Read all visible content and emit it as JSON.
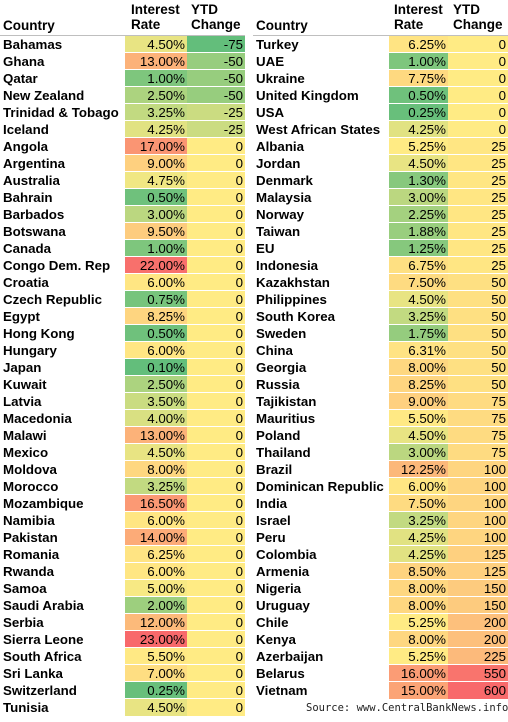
{
  "headers": {
    "country": "Country",
    "rate_line1": "Interest",
    "rate_line2": "Rate",
    "ytd_line1": "YTD",
    "ytd_line2": "Change"
  },
  "colors": {
    "green": "#63be7b",
    "yellow": "#ffeb84",
    "red": "#f8696b"
  },
  "left_rows": [
    {
      "country": "Bahamas",
      "rate": "4.50%",
      "ytd": "-75"
    },
    {
      "country": "Ghana",
      "rate": "13.00%",
      "ytd": "-50"
    },
    {
      "country": "Qatar",
      "rate": "1.00%",
      "ytd": "-50"
    },
    {
      "country": "New Zealand",
      "rate": "2.50%",
      "ytd": "-50"
    },
    {
      "country": "Trinidad & Tobago",
      "rate": "3.25%",
      "ytd": "-25"
    },
    {
      "country": "Iceland",
      "rate": "4.25%",
      "ytd": "-25"
    },
    {
      "country": "Angola",
      "rate": "17.00%",
      "ytd": "0"
    },
    {
      "country": "Argentina",
      "rate": "9.00%",
      "ytd": "0"
    },
    {
      "country": "Australia",
      "rate": "4.75%",
      "ytd": "0"
    },
    {
      "country": "Bahrain",
      "rate": "0.50%",
      "ytd": "0"
    },
    {
      "country": "Barbados",
      "rate": "3.00%",
      "ytd": "0"
    },
    {
      "country": "Botswana",
      "rate": "9.50%",
      "ytd": "0"
    },
    {
      "country": "Canada",
      "rate": "1.00%",
      "ytd": "0"
    },
    {
      "country": "Congo Dem. Rep",
      "rate": "22.00%",
      "ytd": "0"
    },
    {
      "country": "Croatia",
      "rate": "6.00%",
      "ytd": "0"
    },
    {
      "country": "Czech Republic",
      "rate": "0.75%",
      "ytd": "0"
    },
    {
      "country": "Egypt",
      "rate": "8.25%",
      "ytd": "0"
    },
    {
      "country": "Hong Kong",
      "rate": "0.50%",
      "ytd": "0"
    },
    {
      "country": "Hungary",
      "rate": "6.00%",
      "ytd": "0"
    },
    {
      "country": "Japan",
      "rate": "0.10%",
      "ytd": "0"
    },
    {
      "country": "Kuwait",
      "rate": "2.50%",
      "ytd": "0"
    },
    {
      "country": "Latvia",
      "rate": "3.50%",
      "ytd": "0"
    },
    {
      "country": "Macedonia",
      "rate": "4.00%",
      "ytd": "0"
    },
    {
      "country": "Malawi",
      "rate": "13.00%",
      "ytd": "0"
    },
    {
      "country": "Mexico",
      "rate": "4.50%",
      "ytd": "0"
    },
    {
      "country": "Moldova",
      "rate": "8.00%",
      "ytd": "0"
    },
    {
      "country": "Morocco",
      "rate": "3.25%",
      "ytd": "0"
    },
    {
      "country": "Mozambique",
      "rate": "16.50%",
      "ytd": "0"
    },
    {
      "country": "Namibia",
      "rate": "6.00%",
      "ytd": "0"
    },
    {
      "country": "Pakistan",
      "rate": "14.00%",
      "ytd": "0"
    },
    {
      "country": "Romania",
      "rate": "6.25%",
      "ytd": "0"
    },
    {
      "country": "Rwanda",
      "rate": "6.00%",
      "ytd": "0"
    },
    {
      "country": "Samoa",
      "rate": "5.00%",
      "ytd": "0"
    },
    {
      "country": "Saudi Arabia",
      "rate": "2.00%",
      "ytd": "0"
    },
    {
      "country": "Serbia",
      "rate": "12.00%",
      "ytd": "0"
    },
    {
      "country": "Sierra Leone",
      "rate": "23.00%",
      "ytd": "0"
    },
    {
      "country": "South Africa",
      "rate": "5.50%",
      "ytd": "0"
    },
    {
      "country": "Sri Lanka",
      "rate": "7.00%",
      "ytd": "0"
    },
    {
      "country": "Switzerland",
      "rate": "0.25%",
      "ytd": "0"
    },
    {
      "country": "Tunisia",
      "rate": "4.50%",
      "ytd": "0"
    }
  ],
  "right_rows": [
    {
      "country": "Turkey",
      "rate": "6.25%",
      "ytd": "0"
    },
    {
      "country": "UAE",
      "rate": "1.00%",
      "ytd": "0"
    },
    {
      "country": "Ukraine",
      "rate": "7.75%",
      "ytd": "0"
    },
    {
      "country": "United Kingdom",
      "rate": "0.50%",
      "ytd": "0"
    },
    {
      "country": "USA",
      "rate": "0.25%",
      "ytd": "0"
    },
    {
      "country": "West African States",
      "rate": "4.25%",
      "ytd": "0"
    },
    {
      "country": "Albania",
      "rate": "5.25%",
      "ytd": "25"
    },
    {
      "country": "Jordan",
      "rate": "4.50%",
      "ytd": "25"
    },
    {
      "country": "Denmark",
      "rate": "1.30%",
      "ytd": "25"
    },
    {
      "country": "Malaysia",
      "rate": "3.00%",
      "ytd": "25"
    },
    {
      "country": "Norway",
      "rate": "2.25%",
      "ytd": "25"
    },
    {
      "country": "Taiwan",
      "rate": "1.88%",
      "ytd": "25"
    },
    {
      "country": "EU",
      "rate": "1.25%",
      "ytd": "25"
    },
    {
      "country": "Indonesia",
      "rate": "6.75%",
      "ytd": "25"
    },
    {
      "country": "Kazakhstan",
      "rate": "7.50%",
      "ytd": "50"
    },
    {
      "country": "Philippines",
      "rate": "4.50%",
      "ytd": "50"
    },
    {
      "country": "South Korea",
      "rate": "3.25%",
      "ytd": "50"
    },
    {
      "country": "Sweden",
      "rate": "1.75%",
      "ytd": "50"
    },
    {
      "country": "China",
      "rate": "6.31%",
      "ytd": "50"
    },
    {
      "country": "Georgia",
      "rate": "8.00%",
      "ytd": "50"
    },
    {
      "country": "Russia",
      "rate": "8.25%",
      "ytd": "50"
    },
    {
      "country": "Tajikistan",
      "rate": "9.00%",
      "ytd": "75"
    },
    {
      "country": "Mauritius",
      "rate": "5.50%",
      "ytd": "75"
    },
    {
      "country": "Poland",
      "rate": "4.50%",
      "ytd": "75"
    },
    {
      "country": "Thailand",
      "rate": "3.00%",
      "ytd": "75"
    },
    {
      "country": "Brazil",
      "rate": "12.25%",
      "ytd": "100"
    },
    {
      "country": "Dominican Republic",
      "rate": "6.00%",
      "ytd": "100"
    },
    {
      "country": "India",
      "rate": "7.50%",
      "ytd": "100"
    },
    {
      "country": "Israel",
      "rate": "3.25%",
      "ytd": "100"
    },
    {
      "country": "Peru",
      "rate": "4.25%",
      "ytd": "100"
    },
    {
      "country": "Colombia",
      "rate": "4.25%",
      "ytd": "125"
    },
    {
      "country": "Armenia",
      "rate": "8.50%",
      "ytd": "125"
    },
    {
      "country": "Nigeria",
      "rate": "8.00%",
      "ytd": "150"
    },
    {
      "country": "Uruguay",
      "rate": "8.00%",
      "ytd": "150"
    },
    {
      "country": "Chile",
      "rate": "5.25%",
      "ytd": "200"
    },
    {
      "country": "Kenya",
      "rate": "8.00%",
      "ytd": "200"
    },
    {
      "country": "Azerbaijan",
      "rate": "5.25%",
      "ytd": "225"
    },
    {
      "country": "Belarus",
      "rate": "16.00%",
      "ytd": "550"
    },
    {
      "country": "Vietnam",
      "rate": "15.00%",
      "ytd": "600"
    }
  ],
  "source": "Source: www.CentralBankNews.info"
}
